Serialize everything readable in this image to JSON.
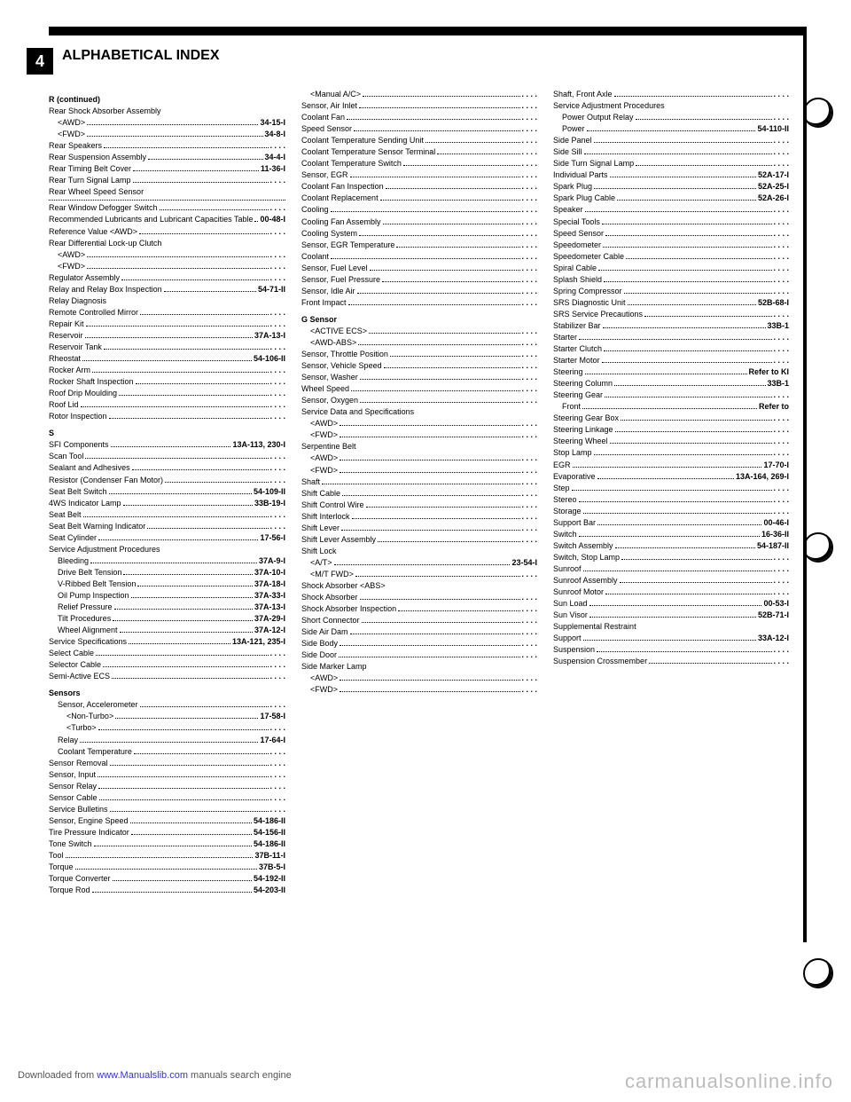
{
  "corner": "4",
  "title": "ALPHABETICAL INDEX",
  "footer_left_pre": "Downloaded from ",
  "footer_link": "www.Manualslib.com",
  "footer_left_post": " manuals search engine",
  "watermark": "carmanualsonline.info",
  "columns": [
    [
      {
        "head": "R (continued)"
      },
      {
        "l": "Rear Shock Absorber Assembly",
        "sub": 0
      },
      {
        "l": "<AWD>",
        "p": "34-15-I",
        "sub": 1
      },
      {
        "l": "<FWD>",
        "p": "34-8-I",
        "sub": 1
      },
      {
        "l": "Rear Speakers",
        "p": ". . . .",
        "sub": 0
      },
      {
        "l": "Rear Suspension Assembly",
        "p": "34-4-I",
        "sub": 0
      },
      {
        "l": "Rear Timing Belt Cover",
        "p": "11-36-I",
        "sub": 0
      },
      {
        "l": "Rear Turn Signal Lamp",
        "p": ". . . .",
        "sub": 0
      },
      {
        "l": "Rear Wheel Speed Sensor",
        "sub": 0
      },
      {
        "hr": true
      },
      {
        "l": "Rear Window Defogger Switch",
        "p": ". . . .",
        "sub": 0
      },
      {
        "l": "Recommended Lubricants and Lubricant Capacities Table",
        "p": "00-48-I",
        "sub": 0
      },
      {
        "l": "Reference Value <AWD>",
        "p": ". . . .",
        "sub": 0
      },
      {
        "l": "Rear Differential Lock-up Clutch",
        "sub": 0
      },
      {
        "l": "<AWD>",
        "p": ". . . .",
        "sub": 1
      },
      {
        "l": "<FWD>",
        "p": ". . . .",
        "sub": 1
      },
      {
        "l": "Regulator Assembly",
        "p": ". . . .",
        "sub": 0
      },
      {
        "l": "Relay and Relay Box Inspection",
        "p": "54-71-II",
        "sub": 0
      },
      {
        "l": "Relay Diagnosis",
        "sub": 0
      },
      {
        "l": "Remote Controlled Mirror",
        "p": ". . . .",
        "sub": 0
      },
      {
        "l": "Repair Kit",
        "p": ". . . .",
        "sub": 0
      },
      {
        "l": "Reservoir",
        "p": "37A-13-I",
        "sub": 0
      },
      {
        "l": "Reservoir Tank",
        "p": ". . . .",
        "sub": 0
      },
      {
        "l": "Rheostat",
        "p": "54-106-II",
        "sub": 0
      },
      {
        "l": "Rocker Arm",
        "p": ". . . .",
        "sub": 0
      },
      {
        "l": "Rocker Shaft Inspection",
        "p": ". . . .",
        "sub": 0
      },
      {
        "l": "Roof Drip Moulding",
        "p": ". . . .",
        "sub": 0
      },
      {
        "l": "Roof Lid",
        "p": ". . . .",
        "sub": 0
      },
      {
        "l": "Rotor Inspection",
        "p": ". . . .",
        "sub": 0
      },
      {
        "head": "S"
      },
      {
        "l": "SFI Components",
        "p": "13A-113, 230-I",
        "sub": 0
      },
      {
        "l": "Scan Tool",
        "p": ". . . .",
        "sub": 0
      },
      {
        "l": "Sealant and Adhesives",
        "p": ". . . .",
        "sub": 0
      },
      {
        "l": "Resistor (Condenser Fan Motor)",
        "p": ". . . .",
        "sub": 0
      },
      {
        "l": "Seat Belt Switch",
        "p": "54-109-II",
        "sub": 0
      },
      {
        "l": "4WS Indicator Lamp",
        "p": "33B-19-I",
        "sub": 0
      },
      {
        "l": "Seat Belt",
        "p": ". . . .",
        "sub": 0
      },
      {
        "l": "Seat Belt Warning Indicator",
        "p": ". . . .",
        "sub": 0
      },
      {
        "l": "Seat Cylinder",
        "p": "17-56-I",
        "sub": 0
      },
      {
        "l": "Service Adjustment Procedures",
        "sub": 0
      },
      {
        "l": "Bleeding",
        "p": "37A-9-I",
        "sub": 1
      },
      {
        "l": "Drive Belt Tension",
        "p": "37A-10-I",
        "sub": 1
      },
      {
        "l": "V-Ribbed Belt Tension",
        "p": "37A-18-I",
        "sub": 1
      },
      {
        "l": "Oil Pump Inspection",
        "p": "37A-33-I",
        "sub": 1
      },
      {
        "l": "Relief Pressure",
        "p": "37A-13-I",
        "sub": 1
      },
      {
        "l": "Tilt Procedures",
        "p": "37A-29-I",
        "sub": 1
      },
      {
        "l": "Wheel Alignment",
        "p": "37A-12-I",
        "sub": 1
      },
      {
        "l": "Service Specifications",
        "p": "13A-121, 235-I",
        "sub": 0
      },
      {
        "l": "Select Cable",
        "p": ". . . .",
        "sub": 0
      },
      {
        "l": "Selector Cable",
        "p": ". . . .",
        "sub": 0
      },
      {
        "l": "Semi-Active ECS",
        "p": ". . . .",
        "sub": 0
      },
      {
        "head": "Sensors"
      },
      {
        "l": "Sensor, Accelerometer",
        "p": ". . . .",
        "sub": 1
      },
      {
        "l": "<Non-Turbo>",
        "p": "17-58-I",
        "sub": 2
      },
      {
        "l": "<Turbo>",
        "p": ". . . .",
        "sub": 2
      },
      {
        "l": "Relay",
        "p": "17-64-I",
        "sub": 1
      },
      {
        "l": "Coolant Temperature",
        "p": ". . . .",
        "sub": 1
      },
      {
        "l": "Sensor Removal",
        "p": ". . . .",
        "sub": 0
      },
      {
        "l": "Sensor, Input",
        "p": ". . . .",
        "sub": 0
      },
      {
        "l": "Sensor Relay",
        "p": ". . . .",
        "sub": 0
      },
      {
        "l": "Sensor Cable",
        "p": ". . . .",
        "sub": 0
      },
      {
        "l": "Service Bulletins",
        "p": ". . . .",
        "sub": 0
      },
      {
        "l": "Sensor, Engine Speed",
        "p": "54-186-II",
        "sub": 0
      },
      {
        "l": "Tire Pressure Indicator",
        "p": "54-156-II",
        "sub": 0
      },
      {
        "l": "Tone Switch",
        "p": "54-186-II",
        "sub": 0
      },
      {
        "l": "Tool",
        "p": "37B-11-I",
        "sub": 0
      },
      {
        "l": "Torque",
        "p": "37B-5-I",
        "sub": 0
      },
      {
        "l": "Torque Converter",
        "p": "54-192-II",
        "sub": 0
      },
      {
        "l": "Torque Rod",
        "p": "54-203-II",
        "sub": 0
      }
    ],
    [
      {
        "l": "<Manual A/C>",
        "p": ". . . .",
        "sub": 1
      },
      {
        "l": "Sensor, Air Inlet",
        "p": ". . . .",
        "sub": 0
      },
      {
        "l": "Coolant Fan",
        "p": ". . . .",
        "sub": 0
      },
      {
        "l": "Speed Sensor",
        "p": ". . . .",
        "sub": 0
      },
      {
        "l": "Coolant Temperature Sending Unit",
        "p": ". . . .",
        "sub": 0
      },
      {
        "l": "Coolant Temperature Sensor Terminal",
        "p": ". . . .",
        "sub": 0
      },
      {
        "l": "Coolant Temperature Switch",
        "p": ". . . .",
        "sub": 0
      },
      {
        "l": "Sensor, EGR",
        "p": ". . . .",
        "sub": 0
      },
      {
        "l": "Coolant Fan Inspection",
        "p": ". . . .",
        "sub": 0
      },
      {
        "l": "Coolant Replacement",
        "p": ". . . .",
        "sub": 0
      },
      {
        "l": "Cooling",
        "p": ". . . .",
        "sub": 0
      },
      {
        "l": "Cooling Fan Assembly",
        "p": ". . . .",
        "sub": 0
      },
      {
        "l": "Cooling System",
        "p": ". . . .",
        "sub": 0
      },
      {
        "l": "Sensor, EGR Temperature",
        "p": ". . . .",
        "sub": 0
      },
      {
        "l": "Coolant",
        "p": ". . . .",
        "sub": 0
      },
      {
        "l": "Sensor, Fuel Level",
        "p": ". . . .",
        "sub": 0
      },
      {
        "l": "Sensor, Fuel Pressure",
        "p": ". . . .",
        "sub": 0
      },
      {
        "l": "Sensor, Idle Air",
        "p": ". . . .",
        "sub": 0
      },
      {
        "l": "Front Impact",
        "p": ". . . .",
        "sub": 0
      },
      {
        "head": "G Sensor"
      },
      {
        "l": "<ACTIVE ECS>",
        "p": ". . . .",
        "sub": 1
      },
      {
        "l": "<AWD-ABS>",
        "p": ". . . .",
        "sub": 1
      },
      {
        "l": "Sensor, Throttle Position",
        "p": ". . . .",
        "sub": 0
      },
      {
        "l": "Sensor, Vehicle Speed",
        "p": ". . . .",
        "sub": 0
      },
      {
        "l": "Sensor, Washer",
        "p": ". . . .",
        "sub": 0
      },
      {
        "l": "Wheel Speed",
        "p": ". . . .",
        "sub": 0
      },
      {
        "l": "Sensor, Oxygen",
        "p": ". . . .",
        "sub": 0
      },
      {
        "l": "Service Data and Specifications",
        "sub": 0
      },
      {
        "l": "<AWD>",
        "p": ". . . .",
        "sub": 1
      },
      {
        "l": "<FWD>",
        "p": ". . . .",
        "sub": 1
      },
      {
        "l": "Serpentine Belt",
        "sub": 0
      },
      {
        "l": "<AWD>",
        "p": ". . . .",
        "sub": 1
      },
      {
        "l": "<FWD>",
        "p": ". . . .",
        "sub": 1
      },
      {
        "l": "Shaft",
        "p": ". . . .",
        "sub": 0
      },
      {
        "l": "Shift Cable",
        "p": ". . . .",
        "sub": 0
      },
      {
        "l": "Shift Control Wire",
        "p": ". . . .",
        "sub": 0
      },
      {
        "l": "Shift Interlock",
        "p": ". . . .",
        "sub": 0
      },
      {
        "l": "Shift Lever",
        "p": ". . . .",
        "sub": 0
      },
      {
        "l": "Shift Lever Assembly",
        "p": ". . . .",
        "sub": 0
      },
      {
        "l": "Shift Lock",
        "sub": 0
      },
      {
        "l": "<A/T>",
        "p": "23-54-I",
        "sub": 1
      },
      {
        "l": "<M/T FWD>",
        "p": ". . . .",
        "sub": 1
      },
      {
        "l": "Shock Absorber <ABS>",
        "sub": 0
      },
      {
        "l": "Shock Absorber",
        "p": ". . . .",
        "sub": 0
      },
      {
        "l": "Shock Absorber Inspection",
        "p": ". . . .",
        "sub": 0
      },
      {
        "l": "Short Connector",
        "p": ". . . .",
        "sub": 0
      },
      {
        "l": "Side Air Dam",
        "p": ". . . .",
        "sub": 0
      },
      {
        "l": "Side Body",
        "p": ". . . .",
        "sub": 0
      },
      {
        "l": "Side Door",
        "p": ". . . .",
        "sub": 0
      },
      {
        "l": "Side Marker Lamp",
        "sub": 0
      },
      {
        "l": "<AWD>",
        "p": ". . . .",
        "sub": 1
      },
      {
        "l": "<FWD>",
        "p": ". . . .",
        "sub": 1
      }
    ],
    [
      {
        "l": "Shaft, Front Axle",
        "p": ". . . .",
        "sub": 0
      },
      {
        "l": "Service Adjustment Procedures",
        "sub": 0
      },
      {
        "l": "Power Output Relay",
        "p": ". . . .",
        "sub": 1
      },
      {
        "l": "Power",
        "p": "54-110-II",
        "sub": 1
      },
      {
        "l": "Side Panel",
        "p": ". . . .",
        "sub": 0
      },
      {
        "l": "Side Sill",
        "p": ". . . .",
        "sub": 0
      },
      {
        "l": "Side Turn Signal Lamp",
        "p": ". . . .",
        "sub": 0
      },
      {
        "l": "Individual Parts",
        "p": "52A-17-I",
        "sub": 0
      },
      {
        "l": "Spark Plug",
        "p": "52A-25-I",
        "sub": 0
      },
      {
        "l": "Spark Plug Cable",
        "p": "52A-26-I",
        "sub": 0
      },
      {
        "l": "Speaker",
        "p": ". . . .",
        "sub": 0
      },
      {
        "l": "Special Tools",
        "p": ". . . .",
        "sub": 0
      },
      {
        "l": "Speed Sensor",
        "p": ". . . .",
        "sub": 0
      },
      {
        "l": "Speedometer",
        "p": ". . . .",
        "sub": 0
      },
      {
        "l": "Speedometer Cable",
        "p": ". . . .",
        "sub": 0
      },
      {
        "l": "Spiral Cable",
        "p": ". . . .",
        "sub": 0
      },
      {
        "l": "Splash Shield",
        "p": ". . . .",
        "sub": 0
      },
      {
        "l": "Spring Compressor",
        "p": ". . . .",
        "sub": 0
      },
      {
        "l": "SRS Diagnostic Unit",
        "p": "52B-68-I",
        "sub": 0
      },
      {
        "l": "SRS Service Precautions",
        "p": ". . . .",
        "sub": 0
      },
      {
        "l": "Stabilizer Bar",
        "p": "33B-1",
        "sub": 0
      },
      {
        "l": "Starter",
        "p": ". . . .",
        "sub": 0
      },
      {
        "l": "Starter Clutch",
        "p": ". . . .",
        "sub": 0
      },
      {
        "l": "Starter Motor",
        "p": ". . . .",
        "sub": 0
      },
      {
        "l": "Steering",
        "p": "Refer to KI",
        "sub": 0
      },
      {
        "l": "Steering Column",
        "p": "33B-1",
        "sub": 0
      },
      {
        "l": "Steering Gear",
        "p": ". . . .",
        "sub": 0
      },
      {
        "l": "Front",
        "p": "Refer to",
        "sub": 1
      },
      {
        "l": "Steering Gear Box",
        "p": ". . . .",
        "sub": 0
      },
      {
        "l": "Steering Linkage",
        "p": ". . . .",
        "sub": 0
      },
      {
        "l": "Steering Wheel",
        "p": ". . . .",
        "sub": 0
      },
      {
        "l": "Stop Lamp",
        "p": ". . . .",
        "sub": 0
      },
      {
        "l": "EGR",
        "p": "17-70-I",
        "sub": 0
      },
      {
        "l": "Evaporative",
        "p": "13A-164, 269-I",
        "sub": 0
      },
      {
        "l": "Step",
        "p": ". . . .",
        "sub": 0
      },
      {
        "l": "Stereo",
        "p": ". . . .",
        "sub": 0
      },
      {
        "l": "Storage",
        "p": ". . . .",
        "sub": 0
      },
      {
        "l": "Support Bar",
        "p": "00-46-I",
        "sub": 0
      },
      {
        "l": "Switch",
        "p": "16-36-II",
        "sub": 0
      },
      {
        "l": "Switch Assembly",
        "p": "54-187-II",
        "sub": 0
      },
      {
        "l": "Switch, Stop Lamp",
        "p": ". . . .",
        "sub": 0
      },
      {
        "l": "Sunroof",
        "p": ". . . .",
        "sub": 0
      },
      {
        "l": "Sunroof Assembly",
        "p": ". . . .",
        "sub": 0
      },
      {
        "l": "Sunroof Motor",
        "p": ". . . .",
        "sub": 0
      },
      {
        "l": "Sun Load",
        "p": "00-53-I",
        "sub": 0
      },
      {
        "l": "Sun Visor",
        "p": "52B-71-I",
        "sub": 0
      },
      {
        "l": "Supplemental Restraint",
        "sub": 0
      },
      {
        "l": "Support",
        "p": "33A-12-I",
        "sub": 0
      },
      {
        "l": "Suspension",
        "p": ". . . .",
        "sub": 0
      },
      {
        "l": "Suspension Crossmember",
        "p": ". . . .",
        "sub": 0
      }
    ]
  ]
}
